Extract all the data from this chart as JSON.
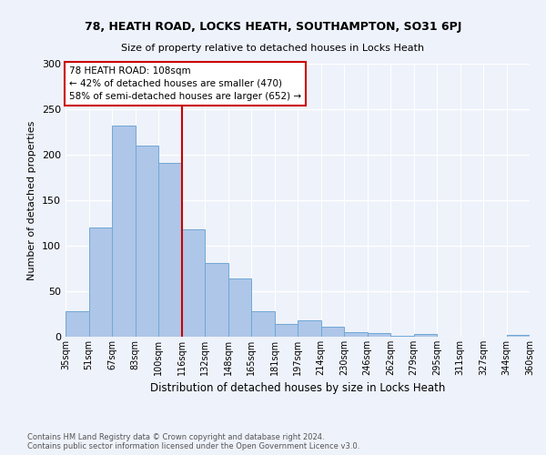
{
  "title1": "78, HEATH ROAD, LOCKS HEATH, SOUTHAMPTON, SO31 6PJ",
  "title2": "Size of property relative to detached houses in Locks Heath",
  "xlabel": "Distribution of detached houses by size in Locks Heath",
  "ylabel": "Number of detached properties",
  "bar_labels": [
    "35sqm",
    "51sqm",
    "67sqm",
    "83sqm",
    "100sqm",
    "116sqm",
    "132sqm",
    "148sqm",
    "165sqm",
    "181sqm",
    "197sqm",
    "214sqm",
    "230sqm",
    "246sqm",
    "262sqm",
    "279sqm",
    "295sqm",
    "311sqm",
    "327sqm",
    "344sqm",
    "360sqm"
  ],
  "bar_heights": [
    28,
    120,
    232,
    210,
    191,
    118,
    81,
    64,
    28,
    14,
    18,
    11,
    5,
    4,
    1,
    3,
    0,
    0,
    0,
    2
  ],
  "bar_color": "#aec6e8",
  "bar_edge_color": "#6fa8d6",
  "vline_x": 5,
  "vline_color": "#cc0000",
  "annotation_title": "78 HEATH ROAD: 108sqm",
  "annotation_line1": "← 42% of detached houses are smaller (470)",
  "annotation_line2": "58% of semi-detached houses are larger (652) →",
  "annotation_box_color": "#ffffff",
  "annotation_box_edge": "#cc0000",
  "ylim": [
    0,
    300
  ],
  "yticks": [
    0,
    50,
    100,
    150,
    200,
    250,
    300
  ],
  "footnote1": "Contains HM Land Registry data © Crown copyright and database right 2024.",
  "footnote2": "Contains public sector information licensed under the Open Government Licence v3.0.",
  "bg_color": "#eef2fa"
}
